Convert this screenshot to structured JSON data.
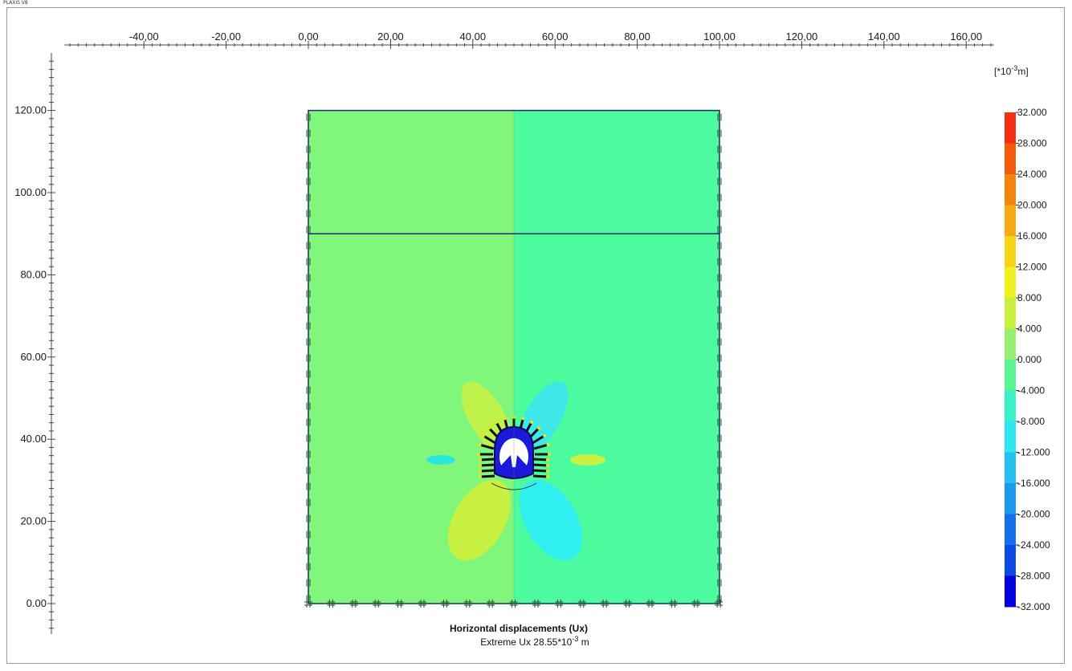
{
  "app": {
    "title": "PLAXIS V8"
  },
  "plot": {
    "x_ticks": [
      "-40,00",
      "-20,00",
      "0,00",
      "20,00",
      "40,00",
      "60,00",
      "80,00",
      "100,00",
      "120,00",
      "140,00",
      "160,00"
    ],
    "y_ticks": [
      "120.00",
      "100.00",
      "80.00",
      "60.00",
      "40.00",
      "20.00",
      "0.00"
    ],
    "x_tick_values": [
      -40,
      -20,
      0,
      20,
      40,
      60,
      80,
      100,
      120,
      140,
      160
    ],
    "y_tick_values": [
      120,
      100,
      80,
      60,
      40,
      20,
      0
    ],
    "model": {
      "x_range": [
        0,
        100
      ],
      "y_range": [
        0,
        120
      ],
      "layer_boundary_y": 90,
      "axis_x": 50,
      "tunnel_center": [
        50,
        34
      ],
      "left_color": "#80f77a",
      "right_color": "#4dfb9f",
      "boundary_color": "#1b2a6b"
    }
  },
  "legend": {
    "unit_prefix": "[*10",
    "unit_exp": "-3",
    "unit_suffix": "m]",
    "labels": [
      "32.000",
      "28.000",
      "24.000",
      "20.000",
      "16.000",
      "12.000",
      "8.000",
      "4.000",
      "0.000",
      "-4.000",
      "-8.000",
      "-12.000",
      "-16.000",
      "-20.000",
      "-24.000",
      "-28.000",
      "-32.000"
    ],
    "colors": [
      "#f03010",
      "#f45a0c",
      "#f48410",
      "#f4aa14",
      "#f4d414",
      "#f0f01c",
      "#c8f040",
      "#98f070",
      "#5cf490",
      "#3cf0c8",
      "#2ce6f0",
      "#24c0f0",
      "#1c98ee",
      "#1470ea",
      "#0c4ae8",
      "#0828e6",
      "#0400e2"
    ]
  },
  "caption": {
    "title": "Horizontal displacements (Ux)",
    "sub_prefix": "Extreme Ux 28.55*10",
    "sub_exp": "-3",
    "sub_suffix": " m"
  }
}
